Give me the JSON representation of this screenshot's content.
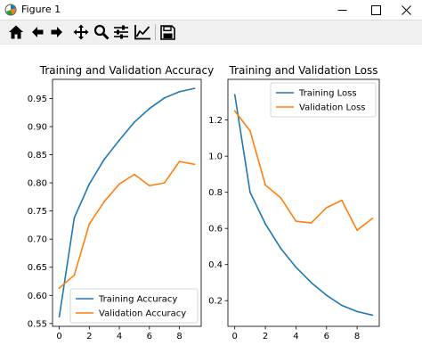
{
  "window": {
    "title": "Figure 1",
    "icon": "matplotlib-icon",
    "controls": [
      "minimize-icon",
      "maximize-icon",
      "close-icon"
    ]
  },
  "toolbar": {
    "buttons": [
      "home-icon",
      "back-arrow-icon",
      "forward-arrow-icon",
      "pan-icon",
      "zoom-icon",
      "configure-subplots-icon",
      "edit-axis-icon",
      "save-icon"
    ]
  },
  "chart_data": [
    {
      "type": "line",
      "title": "Training and Validation Accuracy",
      "x": [
        0,
        1,
        2,
        3,
        4,
        5,
        6,
        7,
        8,
        9
      ],
      "xticks": [
        "0",
        "2",
        "4",
        "6",
        "8"
      ],
      "yticks": [
        "0.55",
        "0.60",
        "0.65",
        "0.70",
        "0.75",
        "0.80",
        "0.85",
        "0.90",
        "0.95"
      ],
      "xlim": [
        -0.45,
        9.45
      ],
      "ylim": [
        0.545,
        0.984
      ],
      "legend_position": "lower right",
      "series": [
        {
          "name": "Training Accuracy",
          "color": "#1f77b4",
          "values": [
            0.562,
            0.738,
            0.798,
            0.842,
            0.876,
            0.908,
            0.932,
            0.951,
            0.962,
            0.968
          ]
        },
        {
          "name": "Validation Accuracy",
          "color": "#ff7f0e",
          "values": [
            0.613,
            0.636,
            0.727,
            0.767,
            0.798,
            0.815,
            0.795,
            0.8,
            0.838,
            0.833
          ]
        }
      ]
    },
    {
      "type": "line",
      "title": "Training and Validation Loss",
      "x": [
        0,
        1,
        2,
        3,
        4,
        5,
        6,
        7,
        8,
        9
      ],
      "xticks": [
        "0",
        "2",
        "4",
        "6",
        "8"
      ],
      "yticks": [
        "0.2",
        "0.4",
        "0.6",
        "0.8",
        "1.0",
        "1.2"
      ],
      "xlim": [
        -0.45,
        9.45
      ],
      "ylim": [
        0.058,
        1.425
      ],
      "legend_position": "upper right",
      "series": [
        {
          "name": "Training Loss",
          "color": "#1f77b4",
          "values": [
            1.34,
            0.8,
            0.625,
            0.49,
            0.385,
            0.3,
            0.23,
            0.174,
            0.14,
            0.12
          ]
        },
        {
          "name": "Validation Loss",
          "color": "#ff7f0e",
          "values": [
            1.25,
            1.14,
            0.84,
            0.77,
            0.64,
            0.63,
            0.715,
            0.755,
            0.59,
            0.655
          ]
        }
      ]
    }
  ]
}
